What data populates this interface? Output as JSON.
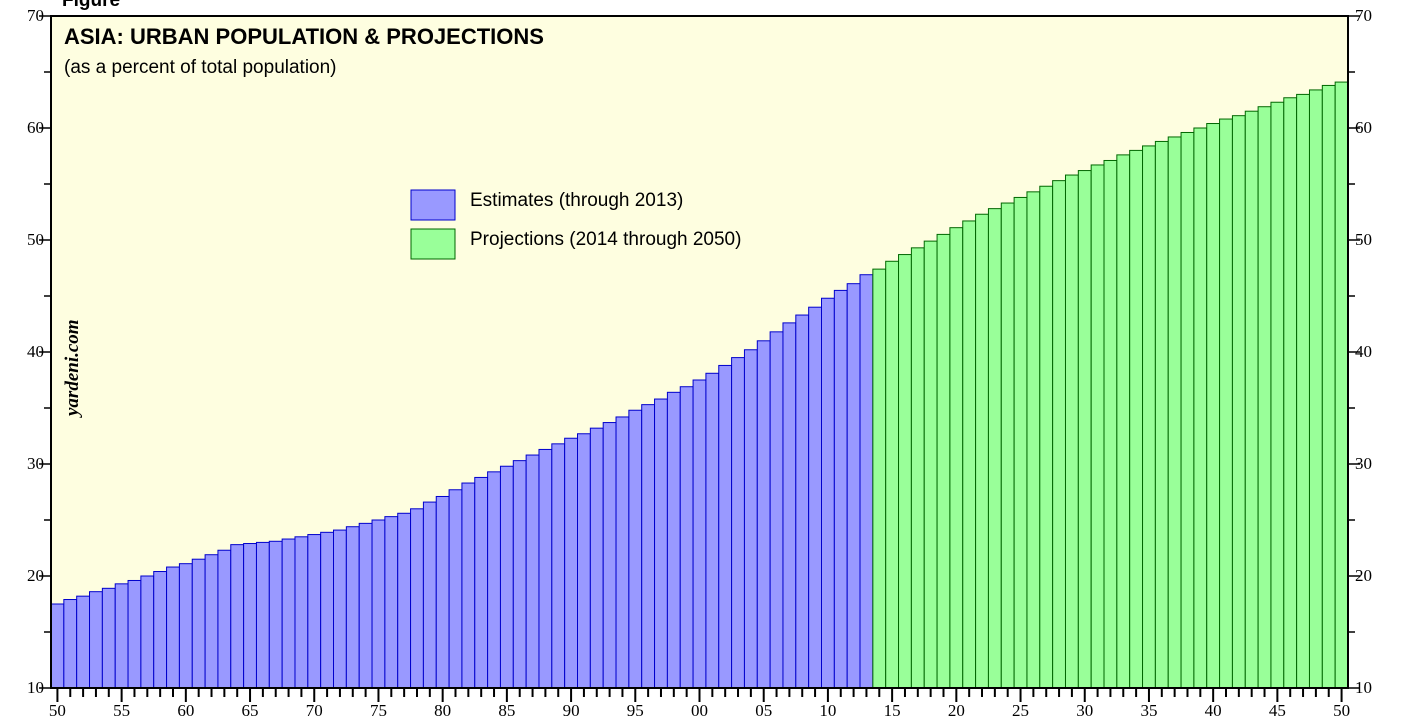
{
  "figure_label": "Figure",
  "watermark": "yardeni.com",
  "chart_data": {
    "type": "bar",
    "title": "ASIA: URBAN POPULATION & PROJECTIONS",
    "subtitle": "(as a percent of total population)",
    "ylim": [
      10,
      70
    ],
    "y_ticks": [
      "10",
      "20",
      "30",
      "40",
      "50",
      "60",
      "70"
    ],
    "x_ticks": [
      {
        "year": 1950,
        "label": "50"
      },
      {
        "year": 1955,
        "label": "55"
      },
      {
        "year": 1960,
        "label": "60"
      },
      {
        "year": 1965,
        "label": "65"
      },
      {
        "year": 1970,
        "label": "70"
      },
      {
        "year": 1975,
        "label": "75"
      },
      {
        "year": 1980,
        "label": "80"
      },
      {
        "year": 1985,
        "label": "85"
      },
      {
        "year": 1990,
        "label": "90"
      },
      {
        "year": 1995,
        "label": "95"
      },
      {
        "year": 2000,
        "label": "00"
      },
      {
        "year": 2005,
        "label": "05"
      },
      {
        "year": 2010,
        "label": "10"
      },
      {
        "year": 2015,
        "label": "15"
      },
      {
        "year": 2020,
        "label": "20"
      },
      {
        "year": 2025,
        "label": "25"
      },
      {
        "year": 2030,
        "label": "30"
      },
      {
        "year": 2035,
        "label": "35"
      },
      {
        "year": 2040,
        "label": "40"
      },
      {
        "year": 2045,
        "label": "45"
      },
      {
        "year": 2050,
        "label": "50"
      }
    ],
    "background_color": "#fefee0",
    "legend_placement": "upper-middle",
    "series": [
      {
        "name": "Estimates (through 2013)",
        "color": "#9999ff",
        "edge_color": "#0000cc",
        "x": [
          1950,
          1951,
          1952,
          1953,
          1954,
          1955,
          1956,
          1957,
          1958,
          1959,
          1960,
          1961,
          1962,
          1963,
          1964,
          1965,
          1966,
          1967,
          1968,
          1969,
          1970,
          1971,
          1972,
          1973,
          1974,
          1975,
          1976,
          1977,
          1978,
          1979,
          1980,
          1981,
          1982,
          1983,
          1984,
          1985,
          1986,
          1987,
          1988,
          1989,
          1990,
          1991,
          1992,
          1993,
          1994,
          1995,
          1996,
          1997,
          1998,
          1999,
          2000,
          2001,
          2002,
          2003,
          2004,
          2005,
          2006,
          2007,
          2008,
          2009,
          2010,
          2011,
          2012,
          2013
        ],
        "values": [
          17.5,
          17.9,
          18.2,
          18.6,
          18.9,
          19.3,
          19.6,
          20.0,
          20.4,
          20.8,
          21.1,
          21.5,
          21.9,
          22.3,
          22.8,
          22.9,
          23.0,
          23.1,
          23.3,
          23.5,
          23.7,
          23.9,
          24.1,
          24.4,
          24.7,
          25.0,
          25.3,
          25.6,
          26.0,
          26.6,
          27.1,
          27.7,
          28.3,
          28.8,
          29.3,
          29.8,
          30.3,
          30.8,
          31.3,
          31.8,
          32.3,
          32.7,
          33.2,
          33.7,
          34.2,
          34.8,
          35.3,
          35.8,
          36.4,
          36.9,
          37.5,
          38.1,
          38.8,
          39.5,
          40.2,
          41.0,
          41.8,
          42.6,
          43.3,
          44.0,
          44.8,
          45.5,
          46.1,
          46.9
        ]
      },
      {
        "name": "Projections (2014 through 2050)",
        "color": "#99ff99",
        "edge_color": "#006600",
        "x": [
          2014,
          2015,
          2016,
          2017,
          2018,
          2019,
          2020,
          2021,
          2022,
          2023,
          2024,
          2025,
          2026,
          2027,
          2028,
          2029,
          2030,
          2031,
          2032,
          2033,
          2034,
          2035,
          2036,
          2037,
          2038,
          2039,
          2040,
          2041,
          2042,
          2043,
          2044,
          2045,
          2046,
          2047,
          2048,
          2049,
          2050
        ],
        "values": [
          47.4,
          48.1,
          48.7,
          49.3,
          49.9,
          50.5,
          51.1,
          51.7,
          52.3,
          52.8,
          53.3,
          53.8,
          54.3,
          54.8,
          55.3,
          55.8,
          56.2,
          56.7,
          57.1,
          57.6,
          58.0,
          58.4,
          58.8,
          59.2,
          59.6,
          60.0,
          60.4,
          60.8,
          61.1,
          61.5,
          61.9,
          62.3,
          62.7,
          63.0,
          63.4,
          63.8,
          64.1
        ]
      }
    ]
  }
}
